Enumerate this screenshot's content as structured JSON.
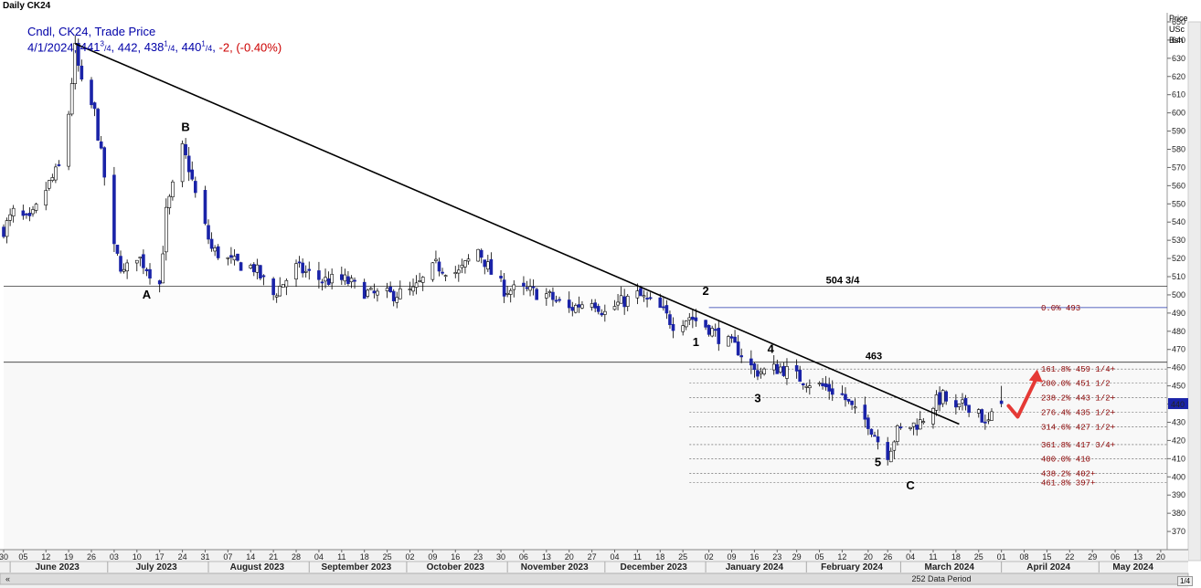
{
  "title": "Daily CK24",
  "info": {
    "line1": "Cndl, CK24, Trade Price",
    "date": "4/1/2024,",
    "open_whole": "441",
    "open_frac": "3",
    "open_den": "/4",
    "high": "442,",
    "low_whole": "438",
    "low_frac": "1",
    "low_den": "/4",
    "close_whole": "440",
    "close_frac": "1",
    "close_den": "/4",
    "change": "-2, (-0.40%)"
  },
  "scale_caption": [
    "Price",
    "USc",
    "Bsh"
  ],
  "period_label": "252 Data Period",
  "page_nav": "1/4",
  "colors": {
    "candle_down": "#1a23a8",
    "candle_up": "#ffffff",
    "wick": "#000000",
    "trendline": "#000000",
    "fib_line": "#555555",
    "fib_text": "#8b0000",
    "zero_line": "#2233aa",
    "last_price_bg": "#1a23a8",
    "arrow": "#e53935"
  },
  "chart_data": {
    "type": "candlestick",
    "ylim": [
      360,
      655
    ],
    "yticks": [
      370,
      380,
      390,
      400,
      410,
      420,
      430,
      440,
      450,
      460,
      470,
      480,
      490,
      500,
      510,
      520,
      530,
      540,
      550,
      560,
      570,
      580,
      590,
      600,
      610,
      620,
      630,
      640,
      650
    ],
    "xlim": [
      "2023-05-30",
      "2024-05-22"
    ],
    "x_tick_days": [
      "30",
      "05",
      "12",
      "19",
      "26",
      "03",
      "10",
      "17",
      "24",
      "31",
      "07",
      "14",
      "21",
      "28",
      "04",
      "11",
      "18",
      "25",
      "02",
      "09",
      "16",
      "23",
      "30",
      "06",
      "13",
      "20",
      "27",
      "04",
      "11",
      "18",
      "25",
      "02",
      "09",
      "16",
      "23",
      "29",
      "05",
      "12",
      "20",
      "26",
      "04",
      "11",
      "18",
      "25",
      "01",
      "08",
      "15",
      "22",
      "29",
      "06",
      "13",
      "20"
    ],
    "x_tick_dates": [
      "2023-05-30",
      "2023-06-05",
      "2023-06-12",
      "2023-06-19",
      "2023-06-26",
      "2023-07-03",
      "2023-07-10",
      "2023-07-17",
      "2023-07-24",
      "2023-07-31",
      "2023-08-07",
      "2023-08-14",
      "2023-08-21",
      "2023-08-28",
      "2023-09-04",
      "2023-09-11",
      "2023-09-18",
      "2023-09-25",
      "2023-10-02",
      "2023-10-09",
      "2023-10-16",
      "2023-10-23",
      "2023-10-30",
      "2023-11-06",
      "2023-11-13",
      "2023-11-20",
      "2023-11-27",
      "2023-12-04",
      "2023-12-11",
      "2023-12-18",
      "2023-12-25",
      "2024-01-02",
      "2024-01-09",
      "2024-01-16",
      "2024-01-23",
      "2024-01-29",
      "2024-02-05",
      "2024-02-12",
      "2024-02-20",
      "2024-02-26",
      "2024-03-04",
      "2024-03-11",
      "2024-03-18",
      "2024-03-25",
      "2024-04-01",
      "2024-04-08",
      "2024-04-15",
      "2024-04-22",
      "2024-04-29",
      "2024-05-06",
      "2024-05-13",
      "2024-05-20"
    ],
    "months": [
      {
        "label": "June 2023",
        "start": "2023-06-01",
        "end": "2023-06-30"
      },
      {
        "label": "July 2023",
        "start": "2023-07-01",
        "end": "2023-07-31"
      },
      {
        "label": "August 2023",
        "start": "2023-08-01",
        "end": "2023-08-31"
      },
      {
        "label": "September 2023",
        "start": "2023-09-01",
        "end": "2023-09-30"
      },
      {
        "label": "October 2023",
        "start": "2023-10-01",
        "end": "2023-10-31"
      },
      {
        "label": "November 2023",
        "start": "2023-11-01",
        "end": "2023-11-30"
      },
      {
        "label": "December 2023",
        "start": "2023-12-01",
        "end": "2023-12-31"
      },
      {
        "label": "January 2024",
        "start": "2024-01-01",
        "end": "2024-01-31"
      },
      {
        "label": "February 2024",
        "start": "2024-02-01",
        "end": "2024-02-29"
      },
      {
        "label": "March 2024",
        "start": "2024-03-01",
        "end": "2024-03-31"
      },
      {
        "label": "April 2024",
        "start": "2024-04-01",
        "end": "2024-04-30"
      },
      {
        "label": "May 2024",
        "start": "2024-05-01",
        "end": "2024-05-22"
      }
    ],
    "price_path": [
      [
        "2023-05-30",
        536
      ],
      [
        "2023-06-02",
        545
      ],
      [
        "2023-06-07",
        540
      ],
      [
        "2023-06-12",
        558
      ],
      [
        "2023-06-16",
        570
      ],
      [
        "2023-06-19",
        600
      ],
      [
        "2023-06-21",
        635
      ],
      [
        "2023-06-23",
        615
      ],
      [
        "2023-06-27",
        600
      ],
      [
        "2023-06-30",
        565
      ],
      [
        "2023-07-03",
        525
      ],
      [
        "2023-07-06",
        512
      ],
      [
        "2023-07-10",
        522
      ],
      [
        "2023-07-13",
        515
      ],
      [
        "2023-07-17",
        506
      ],
      [
        "2023-07-19",
        545
      ],
      [
        "2023-07-24",
        580
      ],
      [
        "2023-07-26",
        570
      ],
      [
        "2023-07-28",
        555
      ],
      [
        "2023-08-02",
        525
      ],
      [
        "2023-08-08",
        518
      ],
      [
        "2023-08-15",
        515
      ],
      [
        "2023-08-21",
        500
      ],
      [
        "2023-08-28",
        515
      ],
      [
        "2023-09-05",
        508
      ],
      [
        "2023-09-12",
        508
      ],
      [
        "2023-09-20",
        500
      ],
      [
        "2023-09-26",
        500
      ],
      [
        "2023-10-03",
        502
      ],
      [
        "2023-10-10",
        516
      ],
      [
        "2023-10-17",
        512
      ],
      [
        "2023-10-23",
        525
      ],
      [
        "2023-10-27",
        512
      ],
      [
        "2023-10-31",
        503
      ],
      [
        "2023-11-07",
        502
      ],
      [
        "2023-11-13",
        500
      ],
      [
        "2023-11-20",
        492
      ],
      [
        "2023-11-27",
        498
      ],
      [
        "2023-12-01",
        490
      ],
      [
        "2023-12-05",
        495
      ],
      [
        "2023-12-11",
        500
      ],
      [
        "2023-12-18",
        492
      ],
      [
        "2023-12-22",
        484
      ],
      [
        "2023-12-27",
        488
      ],
      [
        "2024-01-02",
        482
      ],
      [
        "2024-01-05",
        477
      ],
      [
        "2024-01-11",
        470
      ],
      [
        "2024-01-16",
        458
      ],
      [
        "2024-01-19",
        458
      ],
      [
        "2024-01-24",
        460
      ],
      [
        "2024-01-29",
        455
      ],
      [
        "2024-02-02",
        452
      ],
      [
        "2024-02-07",
        449
      ],
      [
        "2024-02-12",
        445
      ],
      [
        "2024-02-16",
        435
      ],
      [
        "2024-02-20",
        430
      ],
      [
        "2024-02-23",
        420
      ],
      [
        "2024-02-26",
        413
      ],
      [
        "2024-02-29",
        425
      ],
      [
        "2024-03-04",
        428
      ],
      [
        "2024-03-07",
        430
      ],
      [
        "2024-03-11",
        440
      ],
      [
        "2024-03-14",
        444
      ],
      [
        "2024-03-18",
        436
      ],
      [
        "2024-03-21",
        440
      ],
      [
        "2024-03-25",
        437
      ],
      [
        "2024-03-27",
        428
      ],
      [
        "2024-03-28",
        430
      ],
      [
        "2024-04-01",
        440.25
      ]
    ],
    "last_bar": {
      "date": "4/1/2024",
      "open": 441.75,
      "high": 442,
      "low": 438.25,
      "close": 440.25,
      "change": -2,
      "change_pct": -0.4
    },
    "horizontal_levels": [
      {
        "label": "504 3/4",
        "price": 504.75
      },
      {
        "label": "463",
        "price": 463
      }
    ],
    "trendline": {
      "from": [
        "2023-06-21",
        638
      ],
      "to": [
        "2024-03-19",
        429
      ]
    },
    "wave_labels": [
      {
        "label": "A",
        "date": "2023-07-13",
        "price": 498
      },
      {
        "label": "B",
        "date": "2023-07-25",
        "price": 590
      },
      {
        "label": "1",
        "date": "2023-12-29",
        "price": 472
      },
      {
        "label": "2",
        "date": "2024-01-01",
        "price": 500
      },
      {
        "label": "3",
        "date": "2024-01-17",
        "price": 441
      },
      {
        "label": "4",
        "date": "2024-01-21",
        "price": 468
      },
      {
        "label": "5",
        "date": "2024-02-23",
        "price": 406
      },
      {
        "label": "C",
        "date": "2024-03-04",
        "price": 393
      }
    ],
    "fibonacci": [
      {
        "pct": "0.0%",
        "value": "493",
        "price": 493
      },
      {
        "pct": "161.8%",
        "value": "459 1/4+",
        "price": 459.25
      },
      {
        "pct": "200.0%",
        "value": "451 1/2",
        "price": 451.5
      },
      {
        "pct": "238.2%",
        "value": "443 1/2+",
        "price": 443.5
      },
      {
        "pct": "276.4%",
        "value": "435 1/2+",
        "price": 435.5
      },
      {
        "pct": "314.6%",
        "value": "427 1/2+",
        "price": 427.5
      },
      {
        "pct": "361.8%",
        "value": "417 3/4+",
        "price": 417.75
      },
      {
        "pct": "400.0%",
        "value": "410",
        "price": 410
      },
      {
        "pct": "438.2%",
        "value": "402+",
        "price": 402
      },
      {
        "pct": "461.8%",
        "value": "397+",
        "price": 397
      }
    ],
    "last_price_label": "440",
    "last_price": 440.25,
    "arrow": {
      "from": [
        "2024-04-06",
        433
      ],
      "to": [
        "2024-04-12",
        459
      ]
    }
  }
}
